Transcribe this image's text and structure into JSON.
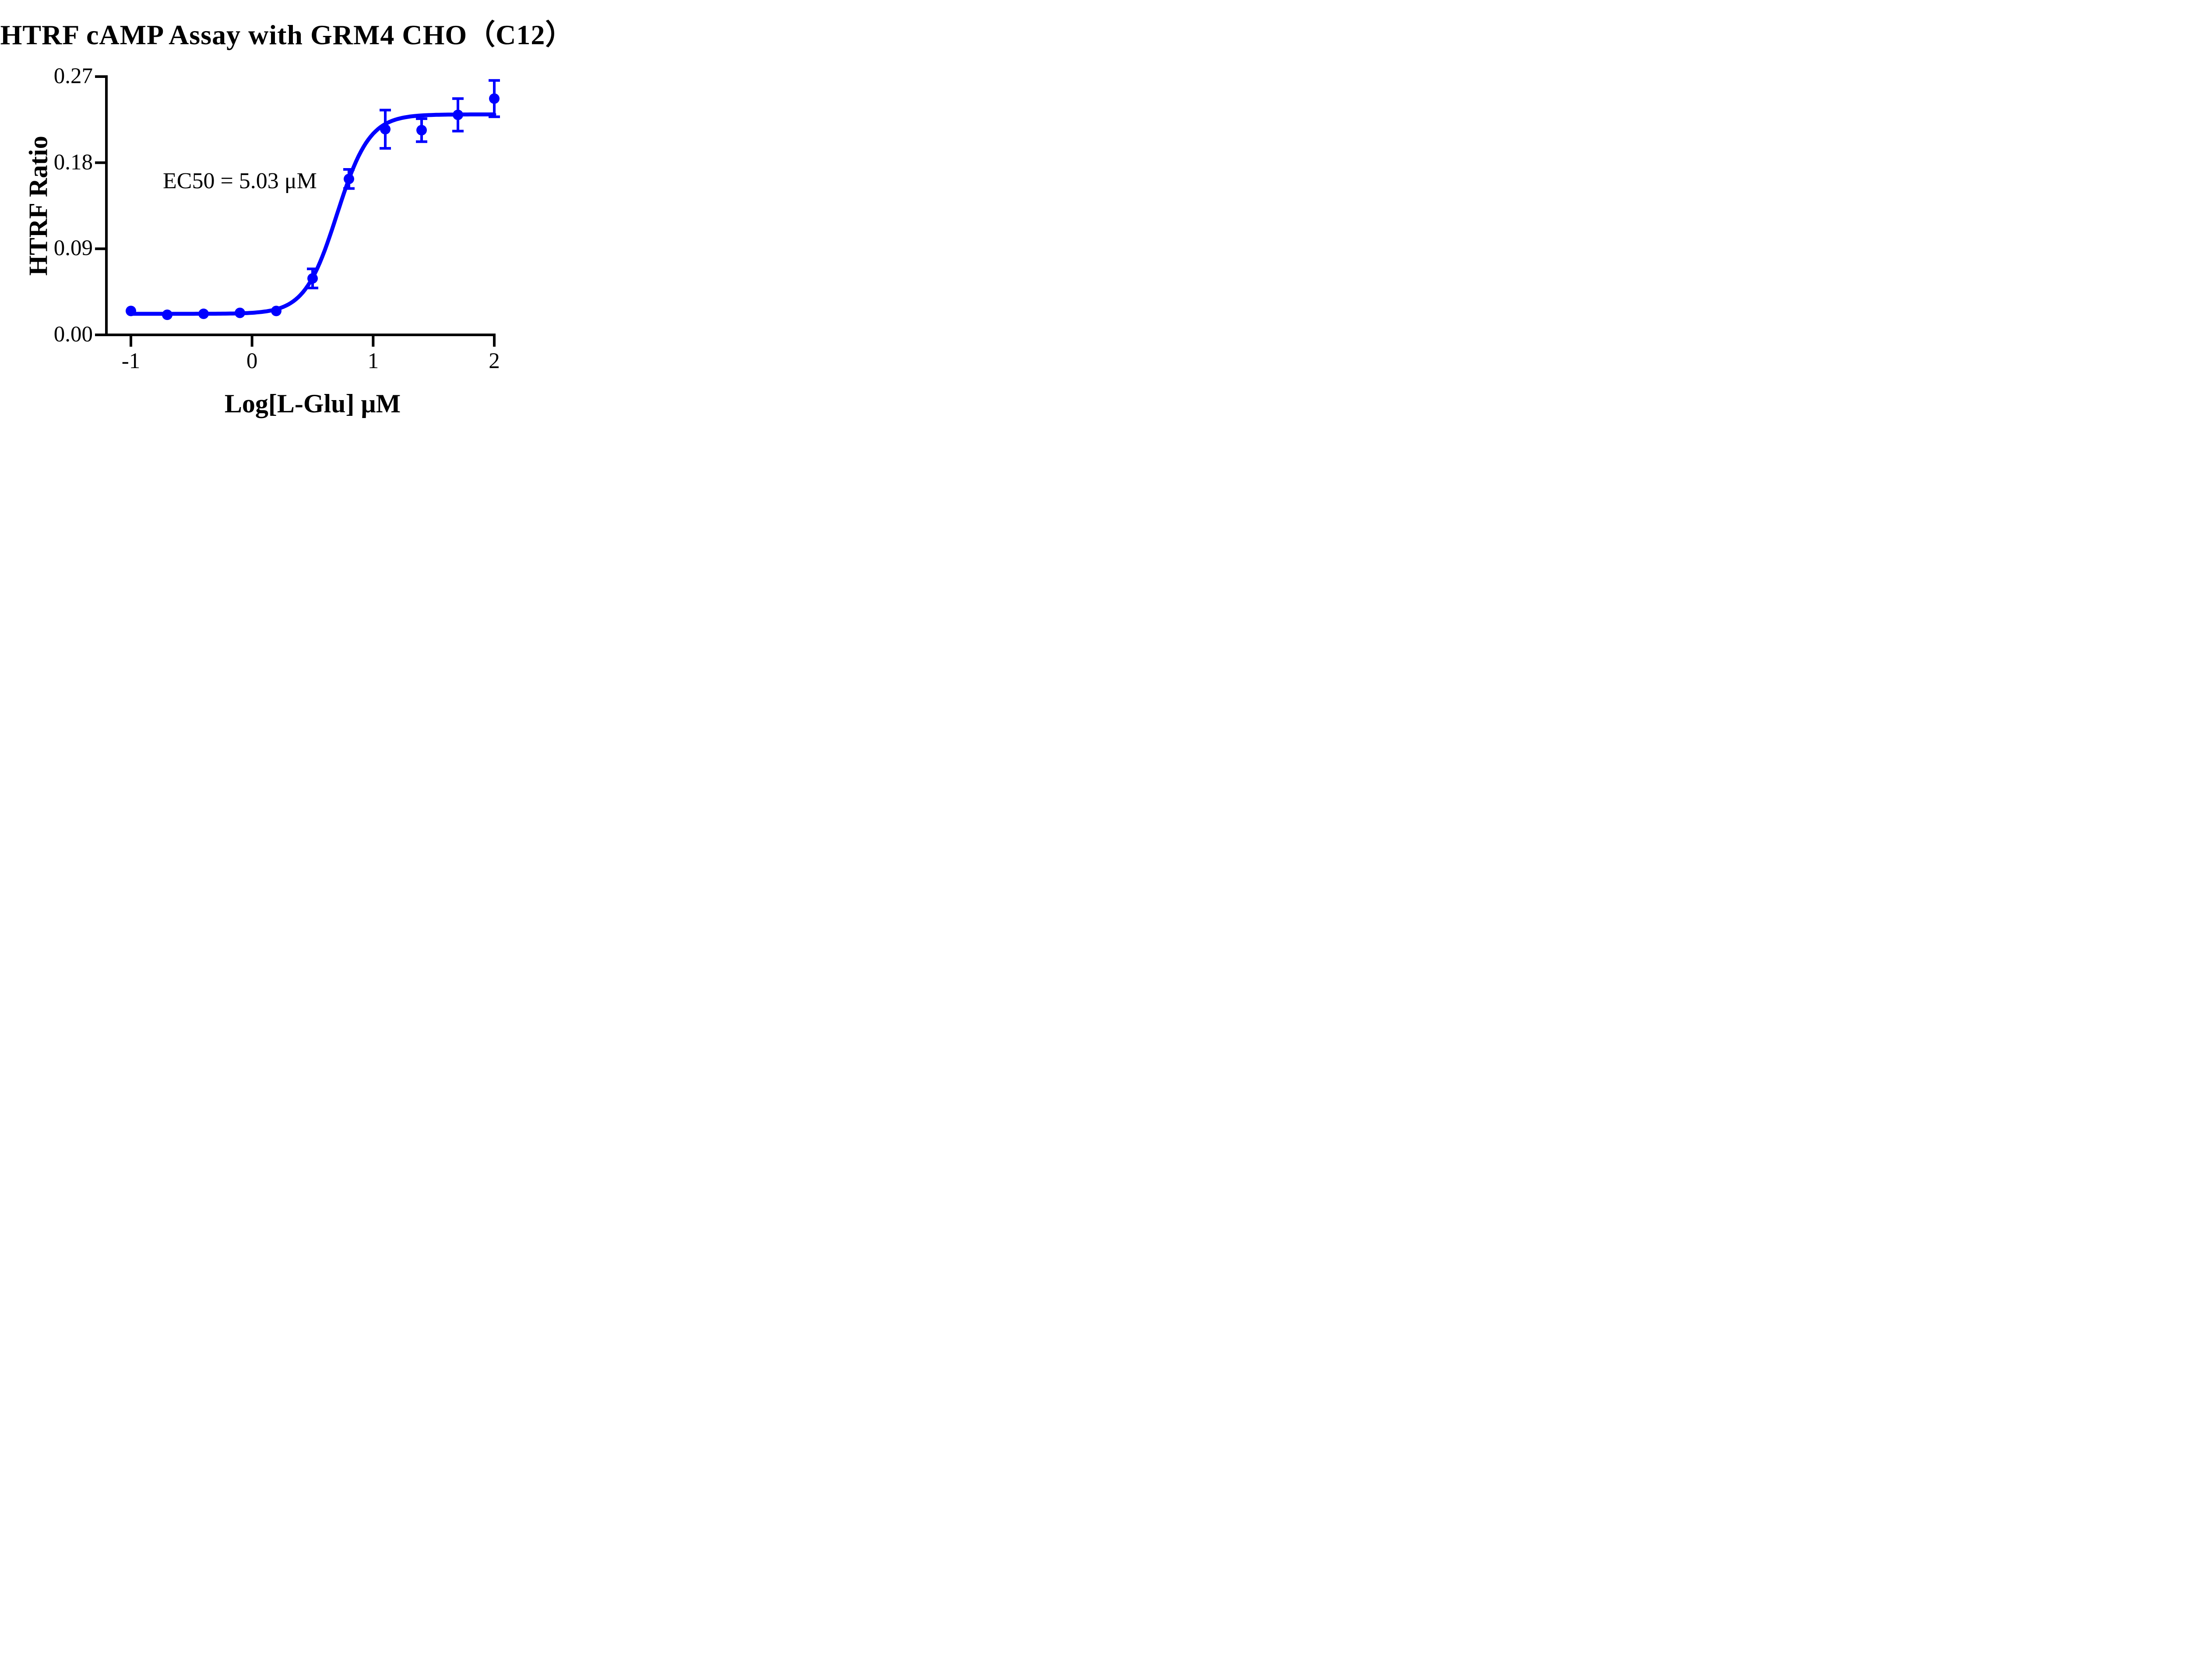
{
  "chart_data": {
    "type": "scatter",
    "title": "HTRF cAMP Assay with GRM4 CHO（C12）",
    "xlabel": "Log[L-Glu] μM",
    "ylabel": "HTRF Ratio",
    "annotation": "EC50 = 5.03 μM",
    "xlim": [
      -1,
      2
    ],
    "ylim": [
      0,
      0.27
    ],
    "x_ticks": [
      {
        "value": -1,
        "label": "-1"
      },
      {
        "value": 0,
        "label": "0"
      },
      {
        "value": 1,
        "label": "1"
      },
      {
        "value": 2,
        "label": "2"
      }
    ],
    "y_ticks": [
      {
        "value": 0.0,
        "label": "0.00"
      },
      {
        "value": 0.09,
        "label": "0.09"
      },
      {
        "value": 0.18,
        "label": "0.18"
      },
      {
        "value": 0.27,
        "label": "0.27"
      }
    ],
    "series": [
      {
        "x": [
          -1.0,
          -0.7,
          -0.4,
          -0.1,
          0.2,
          0.5,
          0.8,
          1.1,
          1.4,
          1.7,
          2.0
        ],
        "y": [
          0.025,
          0.021,
          0.022,
          0.023,
          0.025,
          0.059,
          0.163,
          0.215,
          0.214,
          0.23,
          0.247
        ],
        "yerr": [
          null,
          null,
          null,
          null,
          null,
          0.01,
          0.01,
          0.02,
          0.012,
          0.017,
          0.019
        ]
      }
    ],
    "fit": {
      "model": "4PL sigmoidal",
      "bottom": 0.022,
      "top": 0.2305,
      "log_ec50": 0.702,
      "hill_slope": 3.25,
      "ec50_um": 5.03
    },
    "legend": "none",
    "grid": false,
    "marker_color": "#0000FF",
    "axis_color": "#000000",
    "background": "#FFFFFF"
  }
}
